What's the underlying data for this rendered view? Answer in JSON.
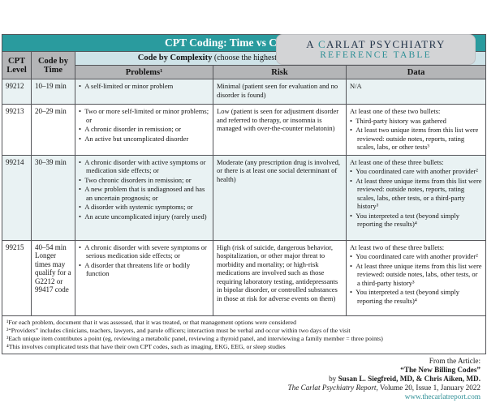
{
  "colors": {
    "teal": "#2a9b9e",
    "accent-teal": "#2e8f96",
    "header-gray": "#b4b5b7",
    "band-cyan": "#cfe3e8",
    "row-tint": "#e9f2f3",
    "badge-gray": "#d3d4d6",
    "ink": "#141414"
  },
  "badge": {
    "line1_prefix": "A ",
    "line1_accent": "C",
    "line1_rest": "ARLAT PSYCHIATRY",
    "line2": "REFERENCE TABLE"
  },
  "table": {
    "title": "CPT Coding: Time vs Complexity",
    "header": {
      "cpt_level": "CPT Level",
      "code_by_time": "Code by Time",
      "complexity_bold": "Code by Complexity",
      "complexity_rest": " (choose the highest level met by at least two of these categories)",
      "problems": "Problems¹",
      "risk": "Risk",
      "data": "Data"
    },
    "rows": [
      {
        "cpt": "99212",
        "time": "10–19 min",
        "time_note": "",
        "problems": [
          "A self-limited or minor problem"
        ],
        "risk": "Minimal (patient seen for evaluation and no disorder is found)",
        "data_intro": "N/A",
        "data_bullets": []
      },
      {
        "cpt": "99213",
        "time": "20–29 min",
        "time_note": "",
        "problems": [
          "Two or more self-limited or minor problems; or",
          "A chronic disorder in remission; or",
          "An active but uncomplicated disorder"
        ],
        "risk": "Low (patient is seen for adjustment disorder and referred to therapy, or insomnia is managed with over-the-counter melatonin)",
        "data_intro": "At least one of these two bullets:",
        "data_bullets": [
          "Third-party history was gathered",
          "At least two unique items from this list were reviewed: outside notes, reports, rating scales, labs, or other tests³"
        ]
      },
      {
        "cpt": "99214",
        "time": "30–39 min",
        "time_note": "",
        "problems": [
          "A chronic disorder with active symptoms or medication side effects; or",
          "Two chronic disorders in remission; or",
          "A new problem that is undiagnosed and has an uncertain prognosis; or",
          "A disorder with systemic symptoms; or",
          "An acute uncomplicated injury (rarely used)"
        ],
        "risk": "Moderate (any prescription drug is involved, or there is at least one social determinant of health)",
        "data_intro": "At least one of these three bullets:",
        "data_bullets": [
          "You coordinated care with another provider²",
          "At least three unique items from this list were reviewed: outside notes, reports, rating scales, labs, other tests, or a third-party history³",
          "You interpreted a test (beyond simply reporting the results)⁴"
        ]
      },
      {
        "cpt": "99215",
        "time": "40–54 min",
        "time_note": "Longer times may qualify for a G2212 or 99417 code",
        "problems": [
          "A chronic disorder with severe symptoms or serious medication side effects; or",
          "A disorder that threatens life or bodily function"
        ],
        "risk": "High (risk of suicide, dangerous behavior, hospitalization, or other major threat to morbidity and mortality; or high-risk medications are involved such as those requiring laboratory testing, antidepressants in bipolar disorder, or controlled substances in those at risk for adverse events on them)",
        "data_intro": "At least two of these three bullets:",
        "data_bullets": [
          "You coordinated care with another provider²",
          "At least three unique items from this list were reviewed: outside notes, labs, other tests, or a third-party history³",
          "You interpreted a test (beyond simply reporting the results)⁴"
        ]
      }
    ]
  },
  "footnotes": [
    "¹For each problem, document that it was assessed, that it was treated, or that management options were considered",
    "²“Providers” includes clinicians, teachers, lawyers, and parole officers; interaction must be verbal and occur within two days of the visit",
    "³Each unique item contributes a point (eg, reviewing a metabolic panel, reviewing a thyroid panel, and interviewing a family member = three points)",
    "⁴This involves complicated tests that have their own CPT codes, such as imaging, EKG, EEG, or sleep studies"
  ],
  "attribution": {
    "from_label": "From the Article:",
    "article_title": "“The New Billing Codes”",
    "by_prefix": "by ",
    "authors": "Susan L. Siegfreid, MD, & Chris Aiken, MD.",
    "journal_italic": "The Carlat Psychiatry Report",
    "journal_rest": ", Volume 20, Issue 1, January 2022",
    "url": "www.thecarlatreport.com"
  }
}
